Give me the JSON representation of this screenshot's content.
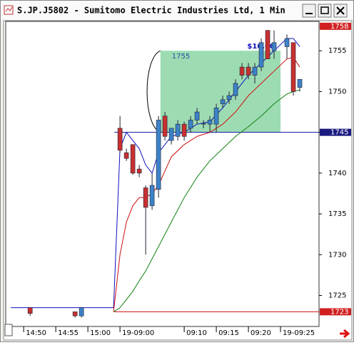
{
  "chart_data": {
    "type": "candlestick",
    "title": "S.JP.J5802 - Sumitomo Electric Industries Ltd, 1 Min",
    "xlim": [
      -17.8,
      31
    ],
    "xticks": [
      {
        "value": -15,
        "label": "14:50"
      },
      {
        "value": -10,
        "label": "14:55"
      },
      {
        "value": -5,
        "label": "15:00"
      },
      {
        "value": 0,
        "label": "19-09:00"
      },
      {
        "value": 10,
        "label": "09:10"
      },
      {
        "value": 15,
        "label": "09:15"
      },
      {
        "value": 20,
        "label": "09:20"
      },
      {
        "value": 25,
        "label": "19-09:25"
      }
    ],
    "ylim": [
      1721.2,
      1758.6
    ],
    "yticks": [
      1725,
      1730,
      1735,
      1740,
      1745,
      1750,
      1755
    ],
    "up_color": "#3c82c8",
    "down_color": "#c83030",
    "candles": {
      "x": [
        -14,
        -7,
        -6,
        0,
        1,
        2,
        3,
        4,
        5,
        6,
        7,
        8,
        9,
        10,
        11,
        12,
        13,
        14,
        15,
        16,
        17,
        18,
        19,
        20,
        21,
        22,
        23,
        24,
        26,
        27,
        28
      ],
      "open": [
        1723.5,
        1723,
        1722.5,
        1745.5,
        1742.5,
        1743.5,
        1740.5,
        1738.2,
        1736,
        1738,
        1747,
        1744,
        1744.5,
        1746,
        1745.5,
        1746.5,
        1746,
        1746,
        1746,
        1748.5,
        1749,
        1749.5,
        1753,
        1753,
        1752,
        1753,
        1757.5,
        1755,
        1755.5,
        1756,
        1750.5
      ],
      "high": [
        1723.5,
        1723,
        1723.5,
        1747,
        1743,
        1743.5,
        1741,
        1738.5,
        1740,
        1747,
        1747.5,
        1745.5,
        1746.5,
        1746.3,
        1747,
        1748,
        1746.5,
        1747,
        1748.5,
        1749.5,
        1750,
        1751.5,
        1753.5,
        1753.5,
        1753.5,
        1756.5,
        1757.5,
        1757.5,
        1757,
        1756,
        1751.5
      ],
      "low": [
        1722.5,
        1722.3,
        1722.3,
        1742.5,
        1741.5,
        1739.8,
        1739.5,
        1730,
        1735.5,
        1737,
        1744,
        1743.5,
        1744,
        1744,
        1745,
        1746,
        1745.5,
        1745,
        1745,
        1748,
        1748.5,
        1749,
        1751.5,
        1751.5,
        1751,
        1752.5,
        1754,
        1754,
        1754,
        1749.5,
        1750
      ],
      "close": [
        1722.8,
        1722.5,
        1723.5,
        1742.8,
        1741.8,
        1740,
        1740,
        1735.8,
        1738.5,
        1746.5,
        1744.5,
        1745.5,
        1746,
        1744.5,
        1746.5,
        1747.5,
        1746.1,
        1746.5,
        1748,
        1749,
        1749.5,
        1751,
        1752,
        1752,
        1753,
        1756,
        1754,
        1756,
        1756.5,
        1750,
        1751.5
      ]
    },
    "lines": {
      "x": [
        -17,
        -1,
        0,
        1,
        2,
        3,
        4,
        5,
        6,
        8,
        10,
        12,
        14,
        16,
        18,
        20,
        22,
        24,
        26,
        27,
        28
      ],
      "series": [
        {
          "color": "#1010c0",
          "values": [
            1723.5,
            1723.5,
            1743,
            1745,
            1744,
            1743,
            1741,
            1740,
            1742.5,
            1744.5,
            1745,
            1746,
            1746.3,
            1748,
            1750,
            1752,
            1753.5,
            1755,
            1756.5,
            1756.5,
            1755.5
          ]
        },
        {
          "color": "#d01010",
          "values": [
            null,
            1723,
            1730,
            1734,
            1736,
            1737,
            1737,
            1737.5,
            1738.5,
            1742,
            1743.5,
            1744.5,
            1745,
            1746,
            1747.5,
            1749.5,
            1751,
            1752.5,
            1754,
            1754.2,
            1753
          ]
        },
        {
          "color": "#108010",
          "values": [
            null,
            1723,
            1723.5,
            1724.5,
            1725.5,
            1726.8,
            1728,
            1729.5,
            1731,
            1734,
            1737,
            1739.5,
            1741.5,
            1743,
            1744.5,
            1745.7,
            1747,
            1748.5,
            1749.7,
            1750,
            1750.2
          ]
        }
      ]
    },
    "hlines": [
      {
        "value": 1745,
        "color": "#1010a0",
        "from": 0
      },
      {
        "value": 1723,
        "color": "#d01010",
        "from": 0
      }
    ],
    "box": {
      "x": [
        6.3,
        25
      ],
      "y": [
        1745,
        1755
      ],
      "label": "1755",
      "amount": "$10.00",
      "color": "#7cd09a"
    },
    "price_tags": [
      {
        "value": 1758,
        "color": "#d02020"
      },
      {
        "value": 1745,
        "color": "#1a1a80"
      },
      {
        "value": 1723,
        "color": "#d02020"
      }
    ]
  }
}
